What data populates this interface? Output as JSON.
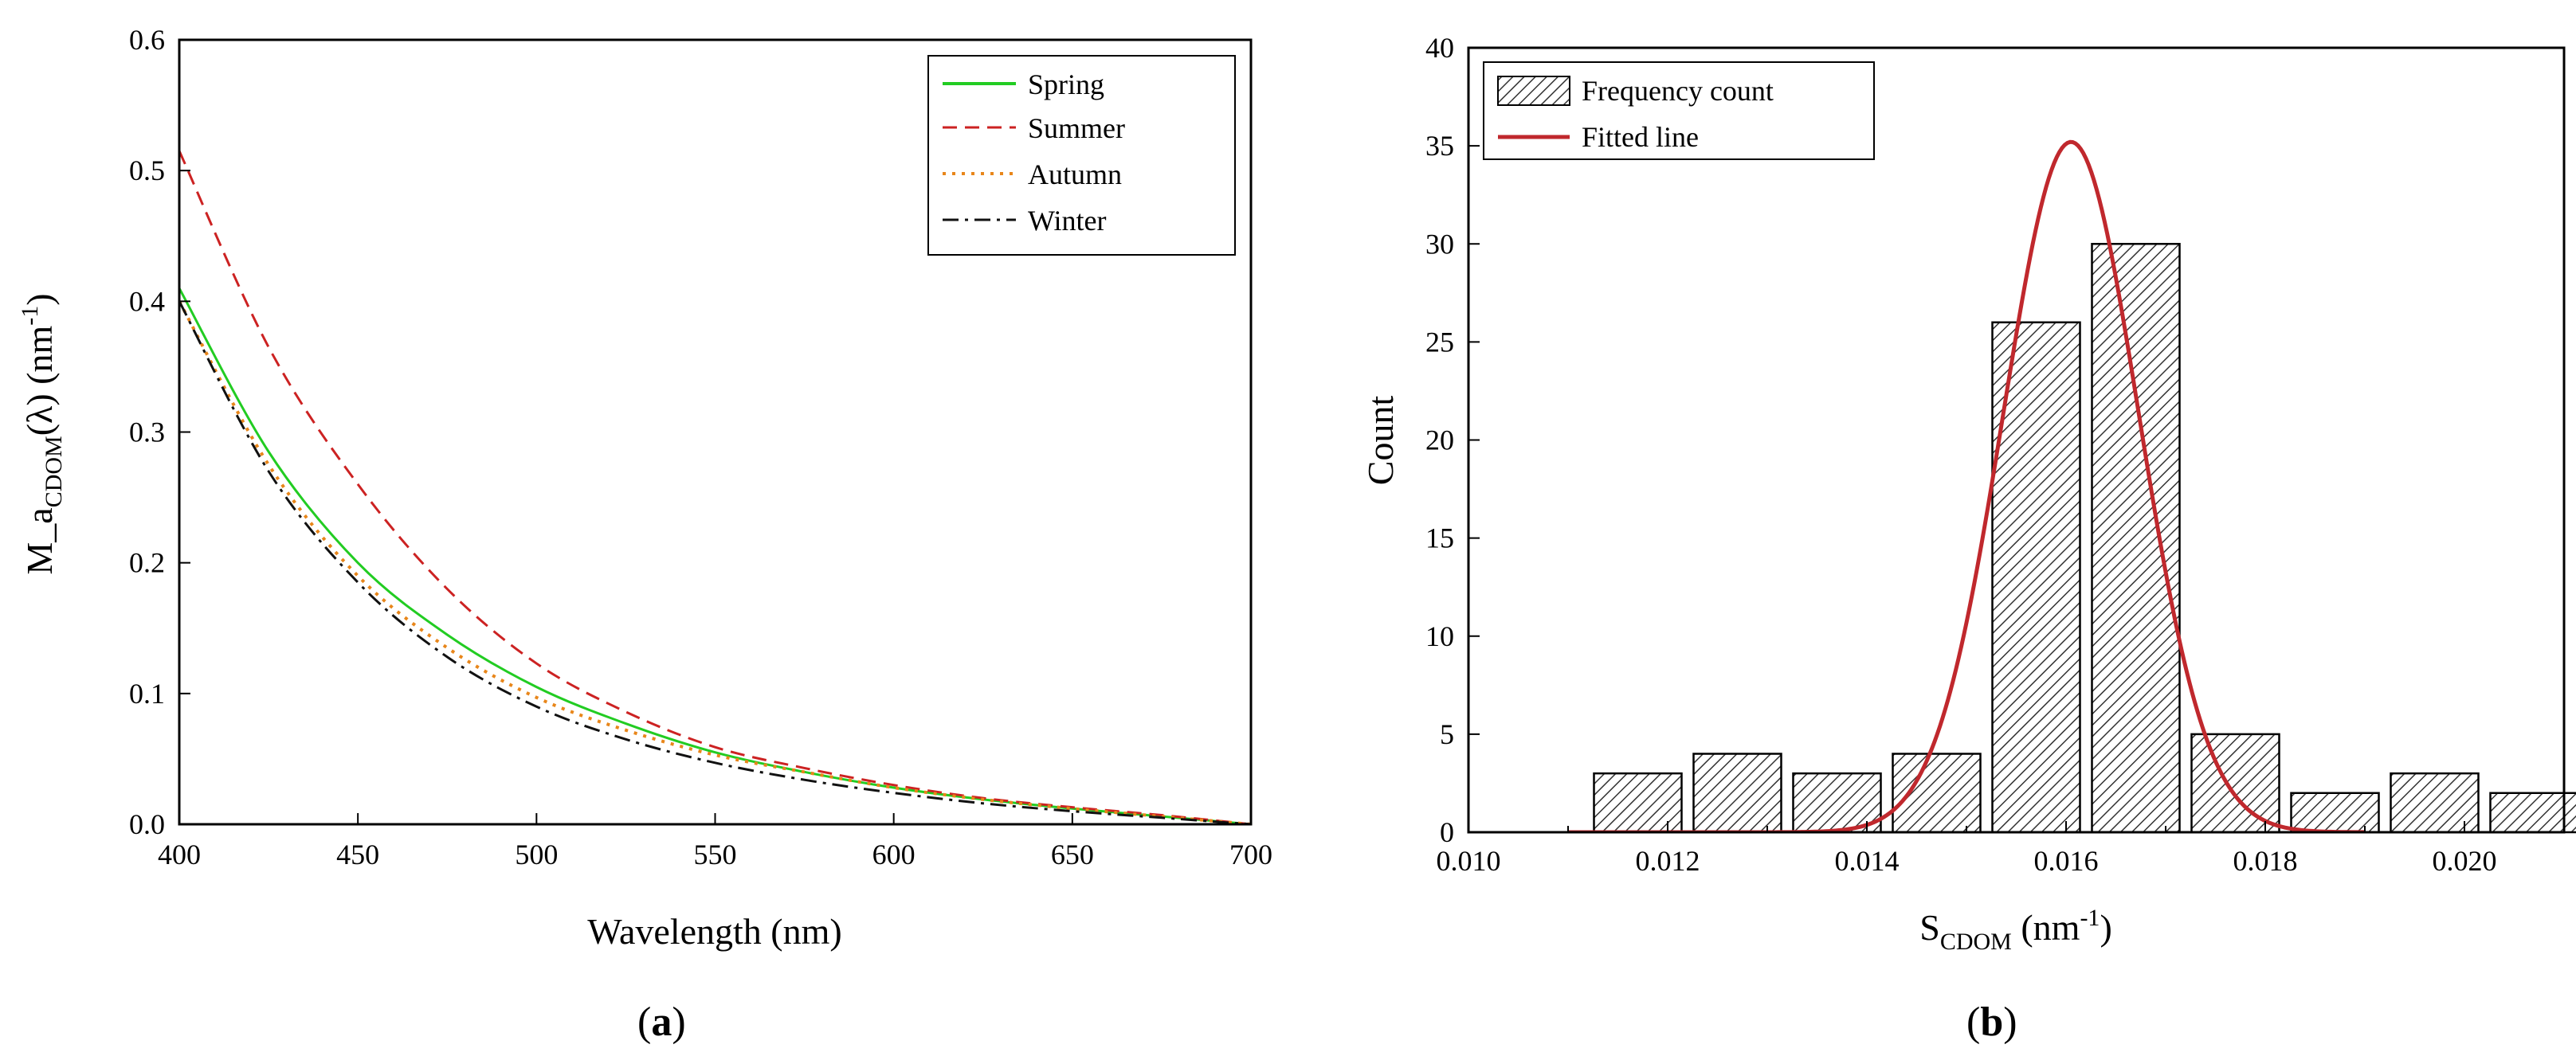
{
  "chart_data": [
    {
      "panel_label": "(a)",
      "panel_letter": "a",
      "type": "line",
      "xlabel": "Wavelength (nm)",
      "ylabel_prefix": "M_a",
      "ylabel_subscript": "CDOM",
      "ylabel_mid": "(λ) (nm",
      "ylabel_superscript": "-1",
      "ylabel_suffix": ")",
      "xlim": [
        400,
        700
      ],
      "ylim": [
        0.0,
        0.6
      ],
      "xticks": [
        400,
        450,
        500,
        550,
        600,
        650,
        700
      ],
      "yticks": [
        "0.0",
        "0.1",
        "0.2",
        "0.3",
        "0.4",
        "0.5",
        "0.6"
      ],
      "legend_position": "top-right",
      "series": [
        {
          "name": "Spring",
          "color": "#22cc22",
          "style": "solid",
          "x": [
            400,
            425,
            450,
            475,
            500,
            525,
            550,
            575,
            600,
            625,
            650,
            675,
            700
          ],
          "y": [
            0.41,
            0.285,
            0.2,
            0.145,
            0.105,
            0.077,
            0.055,
            0.04,
            0.028,
            0.019,
            0.012,
            0.006,
            0.0
          ]
        },
        {
          "name": "Summer",
          "color": "#cc2222",
          "style": "dashed",
          "x": [
            400,
            425,
            450,
            475,
            500,
            525,
            550,
            575,
            600,
            625,
            650,
            675,
            700
          ],
          "y": [
            0.515,
            0.365,
            0.26,
            0.18,
            0.123,
            0.086,
            0.059,
            0.043,
            0.03,
            0.02,
            0.013,
            0.007,
            0.0
          ]
        },
        {
          "name": "Autumn",
          "color": "#e8861a",
          "style": "dotted",
          "x": [
            400,
            425,
            450,
            475,
            500,
            525,
            550,
            575,
            600,
            625,
            650,
            675,
            700
          ],
          "y": [
            0.4,
            0.275,
            0.19,
            0.135,
            0.097,
            0.072,
            0.053,
            0.04,
            0.028,
            0.019,
            0.012,
            0.006,
            0.0
          ]
        },
        {
          "name": "Winter",
          "color": "#111111",
          "style": "dashdot",
          "x": [
            400,
            425,
            450,
            475,
            500,
            525,
            550,
            575,
            600,
            625,
            650,
            675,
            700
          ],
          "y": [
            0.4,
            0.27,
            0.185,
            0.128,
            0.09,
            0.065,
            0.047,
            0.034,
            0.024,
            0.016,
            0.01,
            0.005,
            0.0
          ]
        }
      ]
    },
    {
      "panel_label": "(b)",
      "panel_letter": "b",
      "type": "bar",
      "xlabel_prefix": "S",
      "xlabel_subscript": "CDOM",
      "xlabel_mid": " (nm",
      "xlabel_superscript": "-1",
      "xlabel_suffix": ")",
      "ylabel": "Count",
      "xlim": [
        0.01,
        0.021
      ],
      "ylim": [
        0,
        40
      ],
      "xticks": [
        "0.010",
        "0.012",
        "0.014",
        "0.016",
        "0.018",
        "0.020"
      ],
      "yticks": [
        "0",
        "5",
        "10",
        "15",
        "20",
        "25",
        "30",
        "35",
        "40"
      ],
      "legend_position": "top-left",
      "legend": [
        "Frequency count",
        "Fitted line"
      ],
      "bin_width": 0.001,
      "bin_centers": [
        0.0117,
        0.0127,
        0.0137,
        0.0147,
        0.0157,
        0.0167,
        0.0177,
        0.0187,
        0.0197,
        0.0207
      ],
      "values": [
        3,
        4,
        3,
        4,
        26,
        30,
        5,
        2,
        3,
        2
      ],
      "fit_color": "#c0282d",
      "fit": {
        "type": "gaussian",
        "amplitude": 35.2,
        "mean": 0.01605,
        "sigma": 0.00068
      }
    }
  ]
}
